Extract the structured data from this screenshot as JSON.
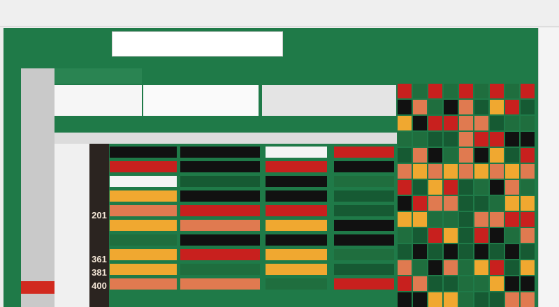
{
  "row_labels": [
    "201",
    "361",
    "381",
    "400"
  ]
}
